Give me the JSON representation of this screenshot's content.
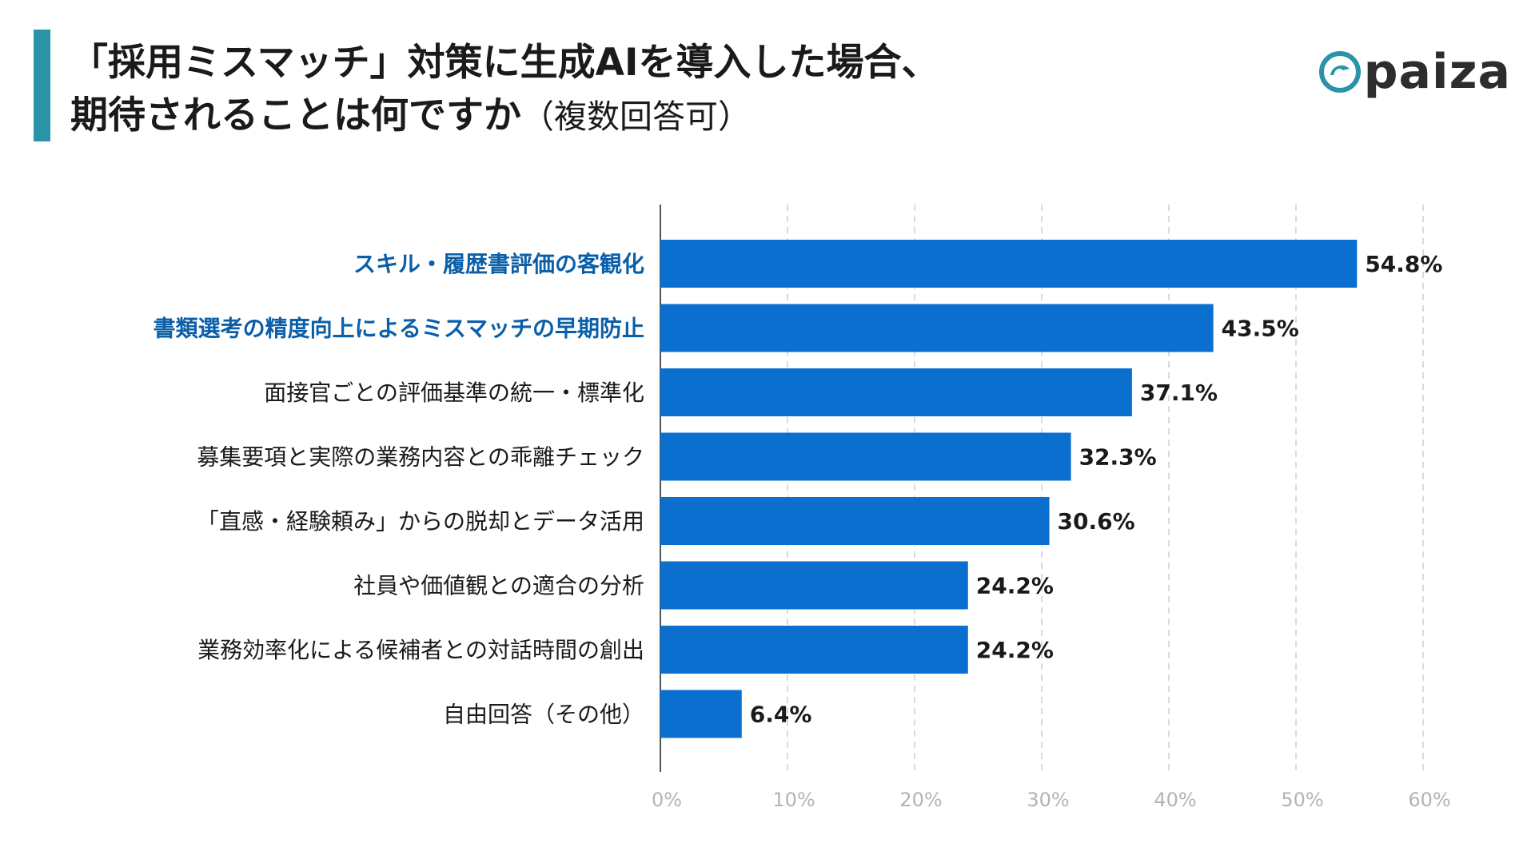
{
  "header": {
    "title_line1": "「採用ミスマッチ」対策に生成AIを導入した場合、",
    "title_line2": "期待されることは何ですか",
    "title_note": "（複数回答可）"
  },
  "logo": {
    "text": "paiza",
    "icon": "paiza-swirl-icon"
  },
  "colors": {
    "accent": "#2a93a8",
    "bar": "#0a6fcf",
    "highlight_label": "#0b5fa8",
    "normal_label": "#1a1a1a"
  },
  "chart_data": {
    "type": "bar",
    "orientation": "horizontal",
    "categories": [
      "スキル・履歴書評価の客観化",
      "書類選考の精度向上によるミスマッチの早期防止",
      "面接官ごとの評価基準の統一・標準化",
      "募集要項と実際の業務内容との乖離チェック",
      "「直感・経験頼み」からの脱却とデータ活用",
      "社員や価値観との適合の分析",
      "業務効率化による候補者との対話時間の創出",
      "自由回答（その他）"
    ],
    "values": [
      54.8,
      43.5,
      37.1,
      32.3,
      30.6,
      24.2,
      24.2,
      6.4
    ],
    "value_labels": [
      "54.8%",
      "43.5%",
      "37.1%",
      "32.3%",
      "30.6%",
      "24.2%",
      "24.2%",
      "6.4%"
    ],
    "highlighted": [
      true,
      true,
      false,
      false,
      false,
      false,
      false,
      false
    ],
    "xlim": [
      0,
      60
    ],
    "x_ticks": [
      0,
      10,
      20,
      30,
      40,
      50,
      60
    ],
    "x_tick_labels": [
      "0%",
      "10%",
      "20%",
      "30%",
      "40%",
      "50%",
      "60%"
    ],
    "grid": true
  }
}
